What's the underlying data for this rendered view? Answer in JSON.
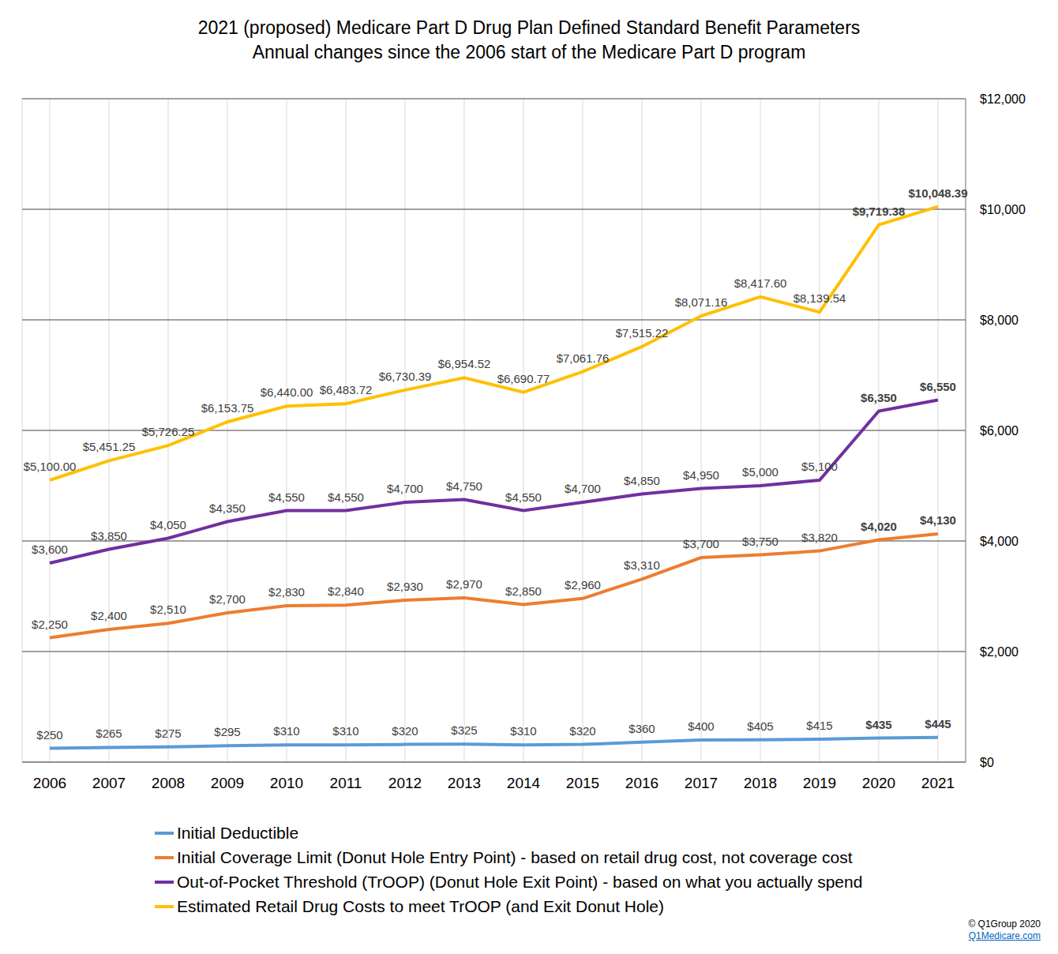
{
  "chart_data": {
    "type": "line",
    "title": "2021 (proposed) Medicare Part D Drug Plan Defined Standard Benefit Parameters",
    "subtitle": "Annual changes since the 2006 start of the Medicare Part D program",
    "categories": [
      "2006",
      "2007",
      "2008",
      "2009",
      "2010",
      "2011",
      "2012",
      "2013",
      "2014",
      "2015",
      "2016",
      "2017",
      "2018",
      "2019",
      "2020",
      "2021"
    ],
    "series": [
      {
        "name": "Initial Deductible",
        "color": "#5B9BD5",
        "values": [
          250,
          265,
          275,
          295,
          310,
          310,
          320,
          325,
          310,
          320,
          360,
          400,
          405,
          415,
          435,
          445
        ],
        "value_labels": [
          "$250",
          "$265",
          "$275",
          "$295",
          "$310",
          "$310",
          "$320",
          "$325",
          "$310",
          "$320",
          "$360",
          "$400",
          "$405",
          "$415",
          "$435",
          "$445"
        ]
      },
      {
        "name": "Initial Coverage Limit (Donut Hole Entry Point) - based on retail drug cost, not coverage cost",
        "color": "#ED7D31",
        "values": [
          2250,
          2400,
          2510,
          2700,
          2830,
          2840,
          2930,
          2970,
          2850,
          2960,
          3310,
          3700,
          3750,
          3820,
          4020,
          4130
        ],
        "value_labels": [
          "$2,250",
          "$2,400",
          "$2,510",
          "$2,700",
          "$2,830",
          "$2,840",
          "$2,930",
          "$2,970",
          "$2,850",
          "$2,960",
          "$3,310",
          "$3,700",
          "$3,750",
          "$3,820",
          "$4,020",
          "$4,130"
        ]
      },
      {
        "name": "Out-of-Pocket Threshold (TrOOP) (Donut Hole Exit Point) - based on what you actually spend",
        "color": "#7030A0",
        "values": [
          3600,
          3850,
          4050,
          4350,
          4550,
          4550,
          4700,
          4750,
          4550,
          4700,
          4850,
          4950,
          5000,
          5100,
          6350,
          6550
        ],
        "value_labels": [
          "$3,600",
          "$3,850",
          "$4,050",
          "$4,350",
          "$4,550",
          "$4,550",
          "$4,700",
          "$4,750",
          "$4,550",
          "$4,700",
          "$4,850",
          "$4,950",
          "$5,000",
          "$5,100",
          "$6,350",
          "$6,550"
        ]
      },
      {
        "name": "Estimated Retail Drug Costs to meet TrOOP (and Exit Donut Hole)",
        "color": "#FFC000",
        "values": [
          5100.0,
          5451.25,
          5726.25,
          6153.75,
          6440.0,
          6483.72,
          6730.39,
          6954.52,
          6690.77,
          7061.76,
          7515.22,
          8071.16,
          8417.6,
          8139.54,
          9719.38,
          10048.39
        ],
        "value_labels": [
          "$5,100.00",
          "$5,451.25",
          "$5,726.25",
          "$6,153.75",
          "$6,440.00",
          "$6,483.72",
          "$6,730.39",
          "$6,954.52",
          "$6,690.77",
          "$7,061.76",
          "$7,515.22",
          "$8,071.16",
          "$8,417.60",
          "$8,139.54",
          "$9,719.38",
          "$10,048.39"
        ]
      }
    ],
    "ylim": [
      0,
      12000
    ],
    "yticks": [
      {
        "value": 0,
        "label": "$0"
      },
      {
        "value": 2000,
        "label": "$2,000"
      },
      {
        "value": 4000,
        "label": "$4,000"
      },
      {
        "value": 6000,
        "label": "$6,000"
      },
      {
        "value": 8000,
        "label": "$8,000"
      },
      {
        "value": 10000,
        "label": "$10,000"
      },
      {
        "value": 12000,
        "label": "$12,000"
      }
    ],
    "grid": true,
    "data_labels": true,
    "legend": "bottom",
    "annotations": [
      "© Q1Group 2020",
      "Q1Medicare.com"
    ]
  }
}
